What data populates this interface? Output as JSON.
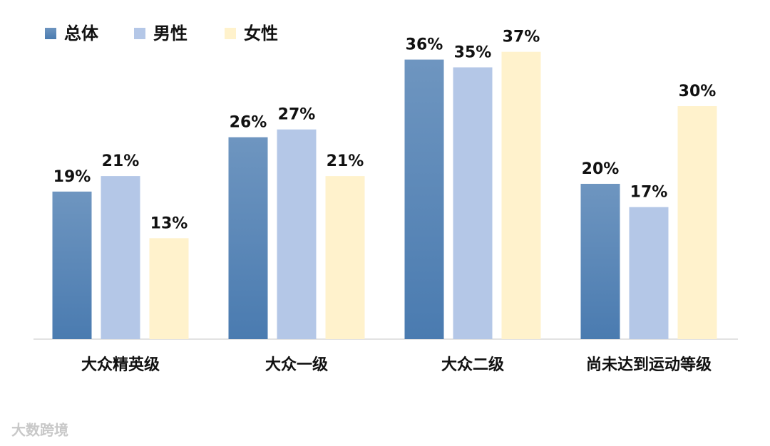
{
  "chart_data": {
    "type": "bar",
    "categories": [
      "大众精英级",
      "大众一级",
      "大众二级",
      "尚未达到运动等级"
    ],
    "series": [
      {
        "name": "总体",
        "color": "#4a7bb0",
        "values": [
          19,
          26,
          36,
          20
        ],
        "value_labels": [
          "19%",
          "26%",
          "36%",
          "20%"
        ]
      },
      {
        "name": "男性",
        "color": "#b4c7e7",
        "values": [
          21,
          27,
          35,
          17
        ],
        "value_labels": [
          "21%",
          "27%",
          "35%",
          "17%"
        ]
      },
      {
        "name": "女性",
        "color": "#fff2cc",
        "values": [
          13,
          21,
          37,
          30
        ],
        "value_labels": [
          "13%",
          "21%",
          "37%",
          "30%"
        ]
      }
    ],
    "legend": "top-left",
    "watermark": "大数跨境"
  }
}
